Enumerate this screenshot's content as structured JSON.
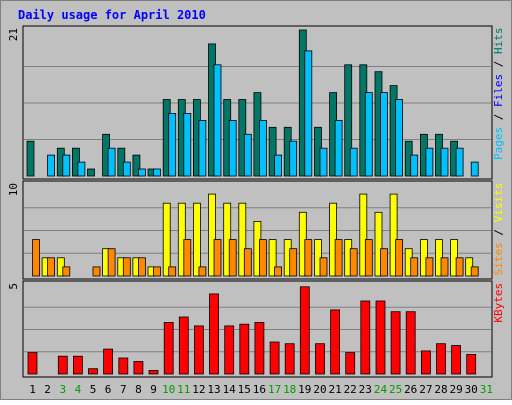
{
  "chart_data": {
    "type": "bar",
    "title": "Daily usage for April 2010",
    "days": [
      "1",
      "2",
      "3",
      "4",
      "5",
      "6",
      "7",
      "8",
      "9",
      "10",
      "11",
      "12",
      "13",
      "14",
      "15",
      "16",
      "17",
      "18",
      "19",
      "20",
      "21",
      "22",
      "23",
      "24",
      "25",
      "26",
      "27",
      "28",
      "29",
      "30",
      "31"
    ],
    "weekend_days": [
      "3",
      "4",
      "10",
      "11",
      "17",
      "18",
      "24",
      "25",
      "31"
    ],
    "panels": [
      {
        "id": "hits",
        "ymax_label": "21",
        "ymax": 21,
        "legend": [
          {
            "text": "Pages",
            "color": "#00c0ff"
          },
          {
            "text": " / ",
            "color": "#000000"
          },
          {
            "text": "Files",
            "color": "#0000ff"
          },
          {
            "text": " / ",
            "color": "#000000"
          },
          {
            "text": "Hits",
            "color": "#007766"
          }
        ],
        "series": [
          {
            "name": "Hits",
            "color": "#007766",
            "values": [
              5,
              0,
              4,
              4,
              1,
              6,
              4,
              3,
              1,
              11,
              11,
              11,
              19,
              11,
              11,
              12,
              7,
              7,
              21,
              7,
              12,
              16,
              16,
              15,
              13,
              5,
              6,
              6,
              5,
              0,
              0
            ]
          },
          {
            "name": "Files",
            "color": "#00c0ff",
            "values": [
              0,
              3,
              3,
              2,
              0,
              4,
              2,
              1,
              1,
              9,
              9,
              8,
              16,
              8,
              6,
              8,
              3,
              5,
              18,
              4,
              8,
              4,
              12,
              12,
              11,
              3,
              4,
              4,
              4,
              2,
              0
            ]
          }
        ]
      },
      {
        "id": "visits",
        "ymax_label": "10",
        "ymax": 10,
        "legend": [
          {
            "text": "Sites",
            "color": "#ff8800"
          },
          {
            "text": " / ",
            "color": "#000000"
          },
          {
            "text": "Visits",
            "color": "#ffff00"
          }
        ],
        "series": [
          {
            "name": "Visits",
            "color": "#ffff00",
            "values": [
              0,
              2,
              2,
              0,
              0,
              3,
              2,
              2,
              1,
              8,
              8,
              8,
              9,
              8,
              8,
              6,
              4,
              4,
              7,
              4,
              8,
              4,
              9,
              7,
              9,
              3,
              4,
              4,
              4,
              2,
              0
            ]
          },
          {
            "name": "Sites",
            "color": "#ff8800",
            "values": [
              4,
              2,
              1,
              0,
              1,
              3,
              2,
              2,
              1,
              1,
              4,
              1,
              4,
              4,
              3,
              4,
              1,
              3,
              4,
              2,
              4,
              3,
              4,
              3,
              4,
              2,
              2,
              2,
              2,
              1,
              0
            ]
          }
        ]
      },
      {
        "id": "kbytes",
        "ymax_label": "5",
        "ymax": 5,
        "legend": [
          {
            "text": "KBytes",
            "color": "#ff0000"
          }
        ],
        "series": [
          {
            "name": "KBytes",
            "color": "#ff0000",
            "values": [
              1.2,
              0,
              1,
              1,
              0.3,
              1.4,
              0.9,
              0.7,
              0.2,
              2.9,
              3.2,
              2.7,
              4.5,
              2.7,
              2.8,
              2.9,
              1.8,
              1.7,
              4.9,
              1.7,
              3.6,
              1.2,
              4.1,
              4.1,
              3.5,
              3.5,
              1.3,
              1.7,
              1.6,
              1.1,
              0
            ]
          }
        ]
      }
    ],
    "colors": {
      "background": "#c0c0c0",
      "gridline": "#808080",
      "title": "#0000ff",
      "weekday_label": "#000000",
      "weekend_label": "#009900"
    }
  }
}
